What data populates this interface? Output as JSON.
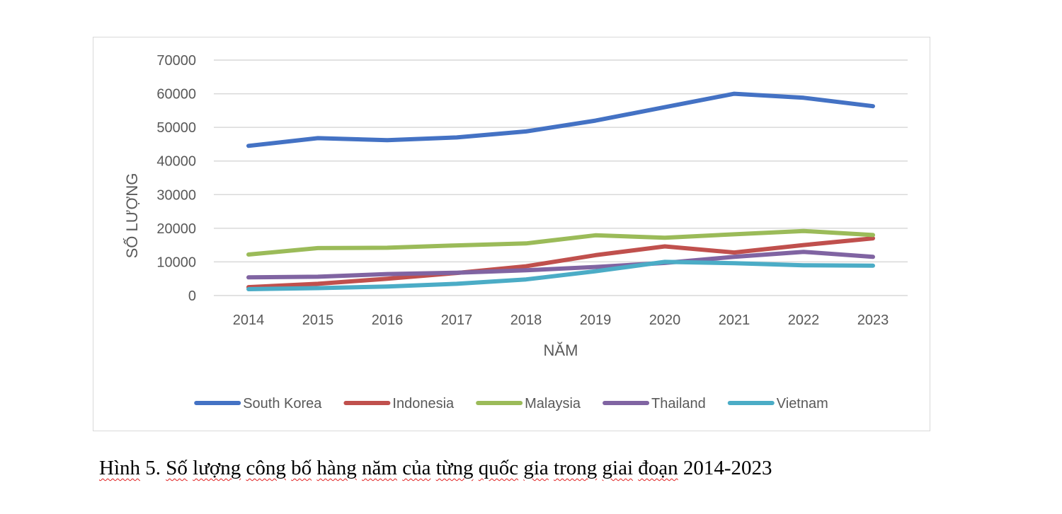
{
  "chart_data": {
    "type": "line",
    "title": "",
    "xlabel": "NĂM",
    "ylabel": "SỐ LƯỢNG",
    "categories": [
      "2014",
      "2015",
      "2016",
      "2017",
      "2018",
      "2019",
      "2020",
      "2021",
      "2022",
      "2023"
    ],
    "ylim": [
      0,
      70000
    ],
    "yticks": [
      0,
      10000,
      20000,
      30000,
      40000,
      50000,
      60000,
      70000
    ],
    "grid": true,
    "legend_position": "bottom",
    "series": [
      {
        "name": "South Korea",
        "color": "#4472c4",
        "values": [
          44500,
          46800,
          46200,
          47000,
          48800,
          52000,
          56000,
          60000,
          58800,
          56300
        ]
      },
      {
        "name": "Indonesia",
        "color": "#c0504d",
        "values": [
          2500,
          3500,
          5000,
          6700,
          8700,
          12000,
          14600,
          12800,
          15000,
          17000
        ]
      },
      {
        "name": "Malaysia",
        "color": "#9bbb59",
        "values": [
          12200,
          14100,
          14200,
          14900,
          15500,
          17900,
          17200,
          18200,
          19200,
          18000
        ]
      },
      {
        "name": "Thailand",
        "color": "#8064a2",
        "values": [
          5400,
          5600,
          6400,
          6800,
          7500,
          8500,
          9700,
          11500,
          13000,
          11500
        ]
      },
      {
        "name": "Vietnam",
        "color": "#4bacc6",
        "values": [
          1900,
          2200,
          2700,
          3500,
          4800,
          7200,
          10000,
          9600,
          9000,
          8900
        ]
      }
    ]
  },
  "caption": "Hình 5. Số lượng công bố hàng năm của từng quốc gia trong giai đoạn 2014-2023"
}
